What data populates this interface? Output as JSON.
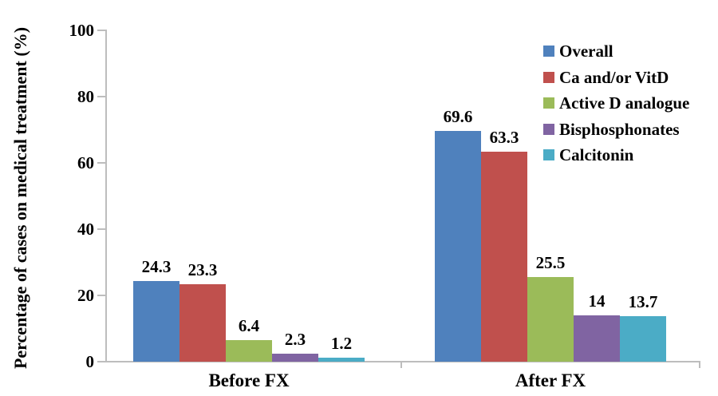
{
  "chart_data": {
    "type": "bar",
    "title": "",
    "xlabel": "",
    "ylabel": "Percentage of cases on medical treatment (%)",
    "categories": [
      "Before FX",
      "After FX"
    ],
    "series": [
      {
        "name": "Overall",
        "color": "#4F81BD",
        "values": [
          24.3,
          69.6
        ]
      },
      {
        "name": "Ca and/or VitD",
        "color": "#C0504D",
        "values": [
          23.3,
          63.3
        ]
      },
      {
        "name": "Active D analogue",
        "color": "#9BBB59",
        "values": [
          6.4,
          25.5
        ]
      },
      {
        "name": "Bisphosphonates",
        "color": "#8064A2",
        "values": [
          2.3,
          14
        ]
      },
      {
        "name": "Calcitonin",
        "color": "#4BACC6",
        "values": [
          1.2,
          13.7
        ]
      }
    ],
    "data_labels": [
      [
        "24.3",
        "23.3",
        "6.4",
        "2.3",
        "1.2"
      ],
      [
        "69.6",
        "63.3",
        "25.5",
        "14",
        "13.7"
      ]
    ],
    "ylim": [
      0,
      100
    ],
    "yticks": [
      0,
      20,
      40,
      60,
      80,
      100
    ],
    "legend_position": "right",
    "grid": false,
    "axis_color": "#BDBDBD",
    "text_color": "#000000",
    "background_color": "#FFFFFF"
  }
}
